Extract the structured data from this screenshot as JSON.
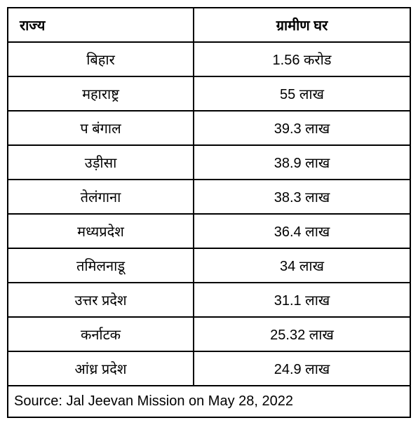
{
  "table": {
    "type": "table",
    "columns": [
      {
        "label": "राज्य",
        "align": "left"
      },
      {
        "label": "ग्रामीण घर",
        "align": "center"
      }
    ],
    "rows": [
      [
        "बिहार",
        "1.56 करोड"
      ],
      [
        "महाराष्ट्र",
        "55 लाख"
      ],
      [
        "प बंगाल",
        "39.3 लाख"
      ],
      [
        "उड़ीसा",
        "38.9 लाख"
      ],
      [
        "तेलंगाना",
        "38.3 लाख"
      ],
      [
        "मध्यप्रदेश",
        "36.4 लाख"
      ],
      [
        "तमिलनाडू",
        "34 लाख"
      ],
      [
        "उत्तर प्रदेश",
        "31.1 लाख"
      ],
      [
        "कर्नाटक",
        "25.32 लाख"
      ],
      [
        "आंध्र प्रदेश",
        "24.9 लाख"
      ]
    ],
    "source": "Source: Jal Jeevan Mission on May 28, 2022",
    "border_color": "#000000",
    "background_color": "#ffffff",
    "text_color": "#000000",
    "header_fontsize": 20,
    "cell_fontsize": 20,
    "header_fontweight": "bold"
  }
}
